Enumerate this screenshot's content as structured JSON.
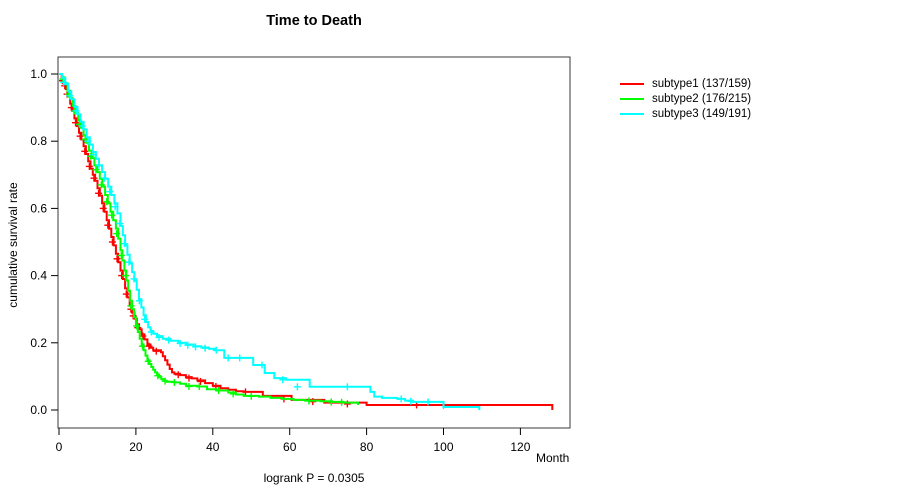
{
  "title": "Time to Death",
  "footer_stat": "logrank P = 0.0305",
  "legend": [
    {
      "id": "subtype1",
      "label": "subtype1 (137/159)",
      "color": "#ff0000"
    },
    {
      "id": "subtype2",
      "label": "subtype2 (176/215)",
      "color": "#00ff00"
    },
    {
      "id": "subtype3",
      "label": "subtype3 (149/191)",
      "color": "#00ffff"
    }
  ],
  "chart_data": {
    "type": "line",
    "subtype": "kaplan-meier-step",
    "title": "Time to Death",
    "xlabel": "Month",
    "ylabel": "cumulative survival rate",
    "xlim": [
      0,
      133
    ],
    "ylim": [
      0,
      1.0
    ],
    "grid": false,
    "legend_position": "right-outside",
    "x_axis": {
      "label": "Month",
      "ticks": [
        0,
        20,
        40,
        60,
        80,
        100,
        120
      ]
    },
    "y_axis": {
      "label": "cumulative survival rate",
      "ticks": [
        "1.0",
        "0.8",
        "0.6",
        "0.4",
        "0.2",
        "0.0"
      ]
    },
    "p_value_label": "logrank P = 0.0305",
    "series": [
      {
        "id": "subtype1",
        "name": "subtype1 (137/159)",
        "events": 137,
        "total": 159,
        "color": "#ff0000",
        "points": [
          [
            0,
            1.0
          ],
          [
            0.7,
            0.987
          ],
          [
            1.2,
            0.974
          ],
          [
            1.8,
            0.955
          ],
          [
            2.3,
            0.935
          ],
          [
            2.9,
            0.912
          ],
          [
            3.5,
            0.89
          ],
          [
            4,
            0.868
          ],
          [
            4.6,
            0.845
          ],
          [
            5.2,
            0.825
          ],
          [
            5.8,
            0.805
          ],
          [
            6.4,
            0.785
          ],
          [
            7,
            0.762
          ],
          [
            7.6,
            0.74
          ],
          [
            8.2,
            0.718
          ],
          [
            8.8,
            0.7
          ],
          [
            9.4,
            0.682
          ],
          [
            10,
            0.66
          ],
          [
            10.6,
            0.638
          ],
          [
            11.2,
            0.615
          ],
          [
            11.8,
            0.59
          ],
          [
            12.4,
            0.565
          ],
          [
            13,
            0.54
          ],
          [
            13.6,
            0.515
          ],
          [
            14.2,
            0.49
          ],
          [
            14.8,
            0.465
          ],
          [
            15.4,
            0.44
          ],
          [
            16,
            0.415
          ],
          [
            16.6,
            0.39
          ],
          [
            17.2,
            0.362
          ],
          [
            17.8,
            0.335
          ],
          [
            18.4,
            0.31
          ],
          [
            19,
            0.29
          ],
          [
            19.6,
            0.272
          ],
          [
            20.2,
            0.255
          ],
          [
            20.8,
            0.24
          ],
          [
            21.5,
            0.225
          ],
          [
            22.2,
            0.21
          ],
          [
            23,
            0.195
          ],
          [
            23.8,
            0.185
          ],
          [
            24.5,
            0.178
          ],
          [
            26.5,
            0.172
          ],
          [
            27,
            0.16
          ],
          [
            27.6,
            0.148
          ],
          [
            28.2,
            0.135
          ],
          [
            28.8,
            0.122
          ],
          [
            29.4,
            0.112
          ],
          [
            30,
            0.108
          ],
          [
            31.5,
            0.104
          ],
          [
            33,
            0.098
          ],
          [
            34.5,
            0.094
          ],
          [
            36,
            0.088
          ],
          [
            38,
            0.08
          ],
          [
            40,
            0.072
          ],
          [
            42,
            0.065
          ],
          [
            44,
            0.06
          ],
          [
            46,
            0.056
          ],
          [
            48,
            0.054
          ],
          [
            53,
            0.042
          ],
          [
            60.5,
            0.03
          ],
          [
            69,
            0.022
          ],
          [
            80,
            0.015
          ],
          [
            128.3,
            0.015
          ],
          [
            128.3,
            0.0
          ]
        ],
        "censors": [
          [
            0.9,
            0.98
          ],
          [
            1.5,
            0.965
          ],
          [
            2.1,
            0.94
          ],
          [
            3.2,
            0.9
          ],
          [
            4.3,
            0.855
          ],
          [
            5.5,
            0.815
          ],
          [
            6.7,
            0.77
          ],
          [
            7.9,
            0.725
          ],
          [
            9.1,
            0.69
          ],
          [
            10.3,
            0.645
          ],
          [
            11.5,
            0.6
          ],
          [
            12.7,
            0.55
          ],
          [
            13.9,
            0.5
          ],
          [
            15.1,
            0.45
          ],
          [
            16.3,
            0.4
          ],
          [
            17.5,
            0.345
          ],
          [
            18.7,
            0.3
          ],
          [
            19.3,
            0.28
          ],
          [
            20.5,
            0.245
          ],
          [
            21.8,
            0.22
          ],
          [
            23.4,
            0.19
          ],
          [
            25.3,
            0.175
          ],
          [
            31,
            0.105
          ],
          [
            33.8,
            0.095
          ],
          [
            36.8,
            0.085
          ],
          [
            40.8,
            0.07
          ],
          [
            48.5,
            0.054
          ],
          [
            58.5,
            0.033
          ],
          [
            66,
            0.025
          ],
          [
            75,
            0.018
          ],
          [
            93,
            0.015
          ],
          [
            100,
            0.015
          ]
        ]
      },
      {
        "id": "subtype2",
        "name": "subtype2 (176/215)",
        "events": 176,
        "total": 215,
        "color": "#00ff00",
        "points": [
          [
            0,
            1.0
          ],
          [
            0.8,
            0.99
          ],
          [
            1.5,
            0.972
          ],
          [
            2.2,
            0.95
          ],
          [
            2.9,
            0.928
          ],
          [
            3.6,
            0.905
          ],
          [
            4.3,
            0.883
          ],
          [
            5,
            0.862
          ],
          [
            5.7,
            0.84
          ],
          [
            6.4,
            0.818
          ],
          [
            7.1,
            0.795
          ],
          [
            7.8,
            0.772
          ],
          [
            8.5,
            0.75
          ],
          [
            9.2,
            0.728
          ],
          [
            9.9,
            0.708
          ],
          [
            10.6,
            0.688
          ],
          [
            11.3,
            0.665
          ],
          [
            12,
            0.64
          ],
          [
            12.7,
            0.615
          ],
          [
            13.4,
            0.59
          ],
          [
            14.1,
            0.565
          ],
          [
            14.8,
            0.54
          ],
          [
            15.4,
            0.51
          ],
          [
            16,
            0.475
          ],
          [
            16.5,
            0.445
          ],
          [
            17,
            0.415
          ],
          [
            17.5,
            0.385
          ],
          [
            18,
            0.355
          ],
          [
            18.5,
            0.325
          ],
          [
            19,
            0.3
          ],
          [
            19.5,
            0.276
          ],
          [
            20,
            0.253
          ],
          [
            20.5,
            0.232
          ],
          [
            21,
            0.212
          ],
          [
            21.5,
            0.195
          ],
          [
            22,
            0.178
          ],
          [
            22.5,
            0.162
          ],
          [
            23,
            0.148
          ],
          [
            23.5,
            0.137
          ],
          [
            24,
            0.128
          ],
          [
            24.5,
            0.12
          ],
          [
            25,
            0.112
          ],
          [
            25.5,
            0.105
          ],
          [
            26,
            0.098
          ],
          [
            26.6,
            0.092
          ],
          [
            27.2,
            0.087
          ],
          [
            28,
            0.084
          ],
          [
            30,
            0.082
          ],
          [
            31.5,
            0.078
          ],
          [
            33,
            0.072
          ],
          [
            36,
            0.07
          ],
          [
            38.5,
            0.062
          ],
          [
            41,
            0.058
          ],
          [
            44,
            0.052
          ],
          [
            46,
            0.046
          ],
          [
            48,
            0.042
          ],
          [
            52,
            0.04
          ],
          [
            55,
            0.036
          ],
          [
            58,
            0.033
          ],
          [
            61,
            0.03
          ],
          [
            64,
            0.028
          ],
          [
            68,
            0.026
          ],
          [
            71,
            0.024
          ],
          [
            74,
            0.022
          ],
          [
            77.8,
            0.022
          ],
          [
            77.8,
            0.015
          ]
        ],
        "censors": [
          [
            1,
            0.985
          ],
          [
            2.5,
            0.94
          ],
          [
            4,
            0.89
          ],
          [
            5.3,
            0.85
          ],
          [
            6.8,
            0.805
          ],
          [
            8.2,
            0.755
          ],
          [
            9.6,
            0.715
          ],
          [
            11,
            0.67
          ],
          [
            12.4,
            0.62
          ],
          [
            13.7,
            0.58
          ],
          [
            15,
            0.525
          ],
          [
            16.2,
            0.46
          ],
          [
            17.3,
            0.4
          ],
          [
            18.7,
            0.31
          ],
          [
            20.2,
            0.25
          ],
          [
            21.7,
            0.19
          ],
          [
            23.2,
            0.145
          ],
          [
            25.7,
            0.102
          ],
          [
            27.6,
            0.086
          ],
          [
            30,
            0.082
          ],
          [
            33.8,
            0.07
          ],
          [
            36.5,
            0.07
          ],
          [
            41.5,
            0.058
          ],
          [
            45.3,
            0.048
          ],
          [
            50,
            0.041
          ],
          [
            65,
            0.027
          ],
          [
            70.8,
            0.024
          ],
          [
            73.5,
            0.023
          ]
        ]
      },
      {
        "id": "subtype3",
        "name": "subtype3 (149/191)",
        "events": 149,
        "total": 191,
        "color": "#00ffff",
        "points": [
          [
            0,
            1.0
          ],
          [
            0.8,
            0.988
          ],
          [
            1.6,
            0.97
          ],
          [
            2.4,
            0.948
          ],
          [
            3.2,
            0.925
          ],
          [
            4,
            0.902
          ],
          [
            4.8,
            0.88
          ],
          [
            5.6,
            0.858
          ],
          [
            6.4,
            0.835
          ],
          [
            7.2,
            0.812
          ],
          [
            8,
            0.79
          ],
          [
            8.8,
            0.768
          ],
          [
            9.6,
            0.748
          ],
          [
            10.4,
            0.728
          ],
          [
            11.2,
            0.708
          ],
          [
            12,
            0.688
          ],
          [
            12.8,
            0.665
          ],
          [
            13.6,
            0.64
          ],
          [
            14.4,
            0.615
          ],
          [
            15.2,
            0.585
          ],
          [
            16,
            0.548
          ],
          [
            16.6,
            0.52
          ],
          [
            17.2,
            0.49
          ],
          [
            17.8,
            0.462
          ],
          [
            18.4,
            0.436
          ],
          [
            19,
            0.41
          ],
          [
            19.6,
            0.385
          ],
          [
            20.2,
            0.358
          ],
          [
            20.8,
            0.33
          ],
          [
            21.4,
            0.305
          ],
          [
            22,
            0.282
          ],
          [
            22.6,
            0.262
          ],
          [
            23.2,
            0.246
          ],
          [
            23.8,
            0.235
          ],
          [
            24.5,
            0.227
          ],
          [
            25.5,
            0.22
          ],
          [
            27,
            0.212
          ],
          [
            29,
            0.206
          ],
          [
            31,
            0.2
          ],
          [
            33,
            0.195
          ],
          [
            35,
            0.19
          ],
          [
            37,
            0.186
          ],
          [
            39,
            0.182
          ],
          [
            40.5,
            0.178
          ],
          [
            43,
            0.155
          ],
          [
            50.5,
            0.134
          ],
          [
            53.5,
            0.11
          ],
          [
            56,
            0.095
          ],
          [
            59,
            0.09
          ],
          [
            65.2,
            0.069
          ],
          [
            81,
            0.054
          ],
          [
            82,
            0.04
          ],
          [
            84,
            0.036
          ],
          [
            88,
            0.033
          ],
          [
            90,
            0.028
          ],
          [
            92,
            0.024
          ],
          [
            100,
            0.009
          ],
          [
            109.3,
            0.009
          ],
          [
            109.3,
            0.0
          ]
        ],
        "censors": [
          [
            1.2,
            0.975
          ],
          [
            2.8,
            0.935
          ],
          [
            4.4,
            0.89
          ],
          [
            6,
            0.845
          ],
          [
            7.5,
            0.8
          ],
          [
            9,
            0.76
          ],
          [
            10.4,
            0.728
          ],
          [
            11.8,
            0.69
          ],
          [
            13.2,
            0.65
          ],
          [
            14.6,
            0.605
          ],
          [
            15.8,
            0.555
          ],
          [
            17,
            0.495
          ],
          [
            18.2,
            0.44
          ],
          [
            19.5,
            0.39
          ],
          [
            20.9,
            0.325
          ],
          [
            22.3,
            0.27
          ],
          [
            24,
            0.232
          ],
          [
            26,
            0.216
          ],
          [
            28.5,
            0.208
          ],
          [
            31.5,
            0.198
          ],
          [
            33.5,
            0.193
          ],
          [
            35.5,
            0.188
          ],
          [
            38,
            0.184
          ],
          [
            40.9,
            0.178
          ],
          [
            44,
            0.155
          ],
          [
            47,
            0.155
          ],
          [
            52.8,
            0.134
          ],
          [
            58.2,
            0.09
          ],
          [
            62,
            0.069
          ],
          [
            75,
            0.069
          ],
          [
            89,
            0.033
          ],
          [
            91.5,
            0.026
          ],
          [
            96,
            0.024
          ]
        ]
      }
    ]
  }
}
